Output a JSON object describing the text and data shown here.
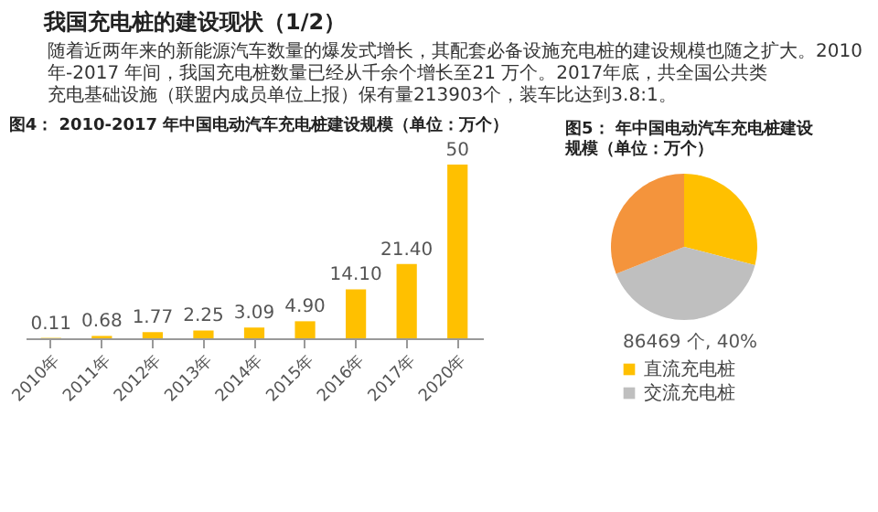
{
  "chart_data": [
    {
      "type": "bar",
      "title": "图4： 2010-2017 年中国电动汽车充电桩建设规模（单位：万个）",
      "categories": [
        "2010年",
        "2011年",
        "2012年",
        "2013年",
        "2014年",
        "2015年",
        "2016年",
        "2017年",
        "2020年"
      ],
      "values": [
        0.11,
        0.68,
        1.77,
        2.25,
        3.09,
        4.9,
        14.1,
        21.4,
        50
      ],
      "value_labels": [
        "0.11",
        "0.68",
        "1.77",
        "2.25",
        "3.09",
        "4.90",
        "14.10",
        "21.40",
        "50"
      ],
      "color": "#ffc000",
      "tick_labels": "x",
      "annotations": [
        "我国充电桩的建设现状（1/2）",
        "随着近两年来的新能源汽车数量的爆发式增长，其配套必备设施充电桩的建设规模也随之扩大。2010 年-2017 年间，我国充电桩数量已经从千余个增长至21 万个。2017年底，共全国公共类充电基础设施（联盟内成员单位上报）保有量213903个，装车比达到3.8:1。"
      ]
    },
    {
      "type": "pie",
      "title": "图5： 年中国电动汽车充电桩建设规模（单位：万个）",
      "categories": [
        "直流充电桩",
        "交流充电桩",
        null
      ],
      "values": [
        29,
        40,
        31
      ],
      "colors": [
        "#ffc000",
        "#bfbfbf",
        "#f4943c"
      ],
      "value_labels": [
        null,
        "86469 个, 40%",
        null
      ],
      "legend": "bottom"
    }
  ]
}
